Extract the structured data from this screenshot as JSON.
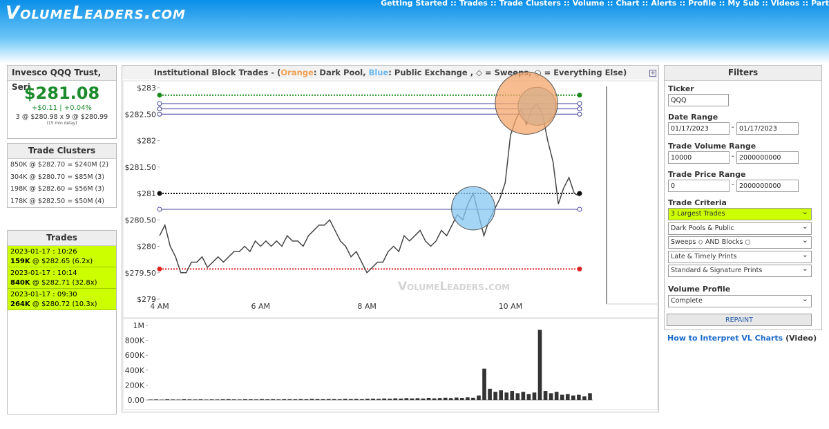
{
  "header": {
    "logo": "VolumeLeaders.com",
    "separator": "::",
    "nav": [
      "Getting Started",
      "Trades",
      "Trade Clusters",
      "Volume",
      "Chart",
      "Alerts",
      "Profile",
      "My Sub",
      "Videos",
      "Part"
    ]
  },
  "quote": {
    "title": "Invesco QQQ Trust, Seri",
    "price": "$281.08",
    "change": "+$0.11 | +0.04%",
    "quote_line": "3 @ $280.98 x 9 @ $280.99",
    "delay": "(15 min delay)"
  },
  "clusters": {
    "title": "Trade Clusters",
    "rows": [
      "850K @ $282.70 = $240M (2)",
      "304K @ $280.70 = $85M (3)",
      "198K @ $282.60 = $56M (3)",
      "178K @ $282.50 = $50M (4)"
    ]
  },
  "trades": {
    "title": "Trades",
    "rows": [
      {
        "time": "2023-01-17 : 10:26",
        "size": "159K",
        "detail": "@ $282.65 (6.2x)"
      },
      {
        "time": "2023-01-17 : 10:14",
        "size": "840K",
        "detail": "@ $282.71 (32.8x)"
      },
      {
        "time": "2023-01-17 : 09:30",
        "size": "264K",
        "detail": "@ $280.72 (10.3x)"
      }
    ]
  },
  "panel": {
    "title_start": "Institutional Block Trades - (",
    "orange": "Orange",
    "orange_text": ": Dark Pool, ",
    "blue": "Blue",
    "blue_text": ": Public Exchange , ◇ = Sweeps, ○ = Everything Else)",
    "watermark": "VolumeLeaders.com"
  },
  "chart_data": [
    {
      "type": "line",
      "color": "#444444",
      "categories": [
        "4 AM",
        null,
        null,
        null,
        null,
        null,
        null,
        null,
        null,
        null,
        null,
        null,
        null,
        null,
        null,
        null,
        null,
        null,
        null,
        "6 AM",
        null,
        null,
        null,
        null,
        null,
        null,
        null,
        null,
        null,
        null,
        null,
        null,
        null,
        null,
        null,
        null,
        null,
        null,
        null,
        "8 AM",
        null,
        null,
        null,
        null,
        null,
        null,
        null,
        null,
        null,
        null,
        null,
        null,
        null,
        null,
        null,
        null,
        null,
        null,
        null,
        null,
        null,
        null,
        null,
        null,
        null,
        null,
        "10 AM",
        null,
        null,
        null,
        null,
        null,
        null,
        null,
        null,
        null,
        null,
        null,
        null,
        null
      ],
      "values": [
        280.2,
        280.4,
        280.0,
        279.8,
        279.5,
        279.5,
        279.7,
        279.7,
        279.8,
        279.6,
        279.7,
        279.8,
        279.7,
        279.8,
        279.9,
        279.9,
        280.0,
        279.9,
        280.1,
        280.0,
        280.1,
        280.0,
        280.1,
        280.0,
        280.2,
        280.1,
        280.1,
        280.0,
        280.2,
        280.3,
        280.4,
        280.4,
        280.5,
        280.3,
        280.1,
        280.0,
        279.8,
        279.9,
        279.7,
        279.5,
        279.6,
        279.7,
        279.7,
        279.9,
        280.0,
        279.9,
        280.2,
        280.1,
        280.2,
        280.3,
        280.1,
        280.0,
        280.1,
        280.3,
        280.2,
        280.4,
        280.6,
        280.5,
        280.8,
        281.0,
        280.6,
        280.2,
        280.5,
        280.7,
        280.9,
        281.2,
        282.1,
        282.4,
        282.6,
        282.3,
        282.6,
        282.7,
        282.5,
        282.0,
        281.6,
        280.8,
        281.1,
        281.3,
        281.0,
        280.95
      ],
      "ylim": [
        279,
        283
      ],
      "yticks": [
        {
          "value": 279,
          "label": "$279"
        },
        {
          "value": 279.5,
          "label": "$279.50"
        },
        {
          "value": 280,
          "label": "$280"
        },
        {
          "value": 280.5,
          "label": "$280.50"
        },
        {
          "value": 281,
          "label": "$281"
        },
        {
          "value": 281.5,
          "label": "$281.50"
        },
        {
          "value": 282,
          "label": "$282"
        },
        {
          "value": 282.5,
          "label": "$282.50"
        },
        {
          "value": 283,
          "label": "$283"
        }
      ],
      "levels": [
        {
          "value": 282.86,
          "color": "#1a8a1a",
          "style": "dotted"
        },
        {
          "value": 282.7,
          "color": "#4040a0",
          "style": "solid"
        },
        {
          "value": 282.6,
          "color": "#4040a0",
          "style": "solid"
        },
        {
          "value": 282.5,
          "color": "#4040a0",
          "style": "solid"
        },
        {
          "value": 281.0,
          "color": "#111111",
          "style": "dotted"
        },
        {
          "value": 280.7,
          "color": "#4040a0",
          "style": "solid"
        },
        {
          "value": 279.57,
          "color": "#dd2222",
          "style": "dotted"
        }
      ],
      "bubbles": [
        {
          "x": 71,
          "y": 282.65,
          "size": 159000,
          "color": "#87c7f0"
        },
        {
          "x": 69,
          "y": 282.71,
          "size": 840000,
          "color": "#f4a56a"
        },
        {
          "x": 59,
          "y": 280.72,
          "size": 264000,
          "color": "#87c7f0"
        }
      ]
    },
    {
      "type": "bar",
      "color": "#333333",
      "values": [
        6000,
        8000,
        5000,
        9000,
        7000,
        6000,
        10000,
        8000,
        7000,
        9000,
        6000,
        8000,
        7000,
        9000,
        11000,
        8000,
        7000,
        10000,
        9000,
        8000,
        12000,
        9000,
        10000,
        8000,
        11000,
        10000,
        9000,
        12000,
        10000,
        14000,
        12000,
        11000,
        13000,
        12000,
        10000,
        15000,
        12000,
        14000,
        11000,
        16000,
        18000,
        15000,
        20000,
        17000,
        22000,
        19000,
        25000,
        21000,
        24000,
        20000,
        28000,
        22000,
        26000,
        30000,
        25000,
        32000,
        28000,
        35000,
        30000,
        60000,
        420000,
        150000,
        110000,
        130000,
        100000,
        120000,
        90000,
        110000,
        80000,
        100000,
        940000,
        120000,
        90000,
        110000,
        70000,
        80000,
        60000,
        70000,
        50000,
        90000
      ],
      "ylim": [
        0,
        1000000
      ],
      "yticks": [
        {
          "value": 0,
          "label": "0.00"
        },
        {
          "value": 200000,
          "label": "200K"
        },
        {
          "value": 400000,
          "label": "400K"
        },
        {
          "value": 600000,
          "label": "600K"
        },
        {
          "value": 800000,
          "label": "800K"
        },
        {
          "value": 1000000,
          "label": "1M"
        }
      ]
    }
  ],
  "filters": {
    "title": "Filters",
    "range_separator": "-",
    "ticker_label": "Ticker",
    "ticker": "QQQ",
    "date_label": "Date Range",
    "date_from": "01/17/2023",
    "date_to": "01/17/2023",
    "volume_label": "Trade Volume Range",
    "volume_from": "10000",
    "volume_to": "2000000000",
    "price_label": "Trade Price Range",
    "price_from": "0",
    "price_to": "2000000000",
    "criteria_label": "Trade Criteria",
    "criteria": [
      "3 Largest Trades",
      "Dark Pools & Public",
      "Sweeps ◇ AND Blocks ○",
      "Late & Timely Prints",
      "Standard & Signature Prints"
    ],
    "profile_label": "Volume Profile",
    "profile": "Complete",
    "button": "REPAINT"
  },
  "help": {
    "link": "How to Interpret VL Charts",
    "suffix": "(Video)"
  }
}
